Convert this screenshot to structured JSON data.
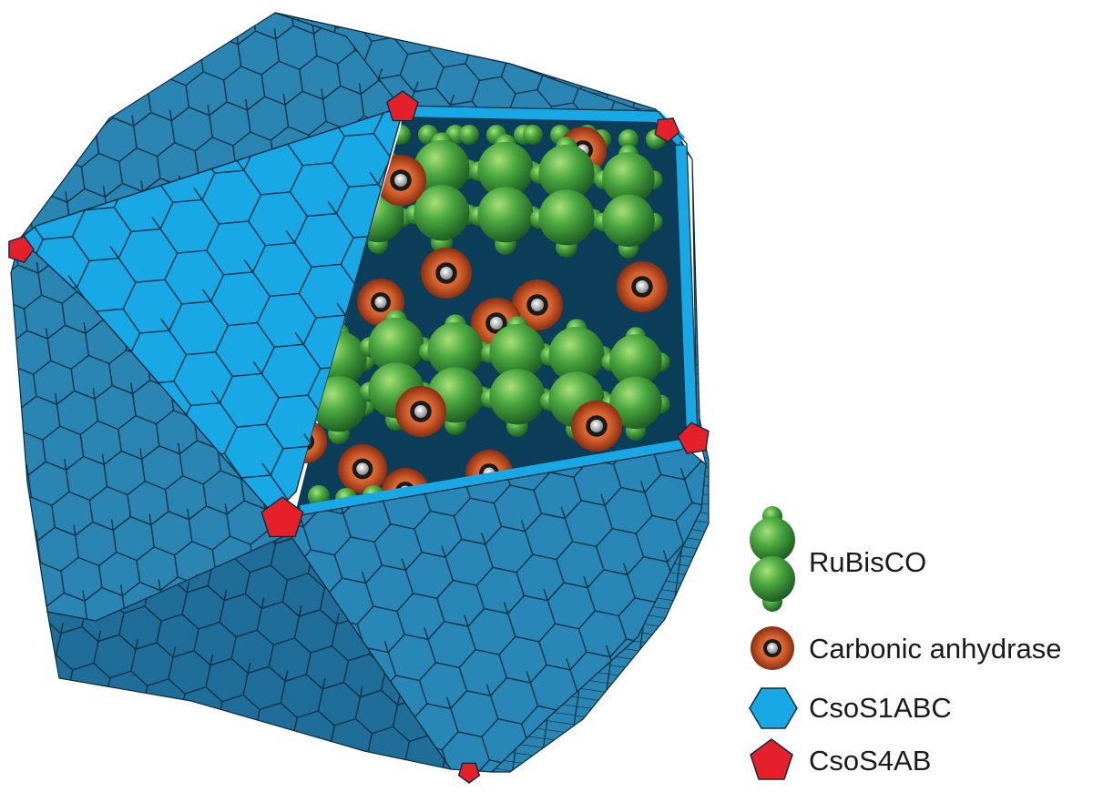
{
  "legend": {
    "items": [
      {
        "key": "rubisco",
        "label": "RuBisCO",
        "icon": "rubisco-icon",
        "color": "#3f9a3a"
      },
      {
        "key": "carbonic",
        "label": "Carbonic anhydrase",
        "icon": "carbonic-anhydrase-icon",
        "color": "#c8552a"
      },
      {
        "key": "csos1",
        "label": "CsoS1ABC",
        "icon": "hexagon-icon",
        "color": "#19a8e6"
      },
      {
        "key": "csos4",
        "label": "CsoS4AB",
        "icon": "pentagon-icon",
        "color": "#e5202a"
      }
    ]
  },
  "colors": {
    "shell_dark": "#2580ad",
    "shell_light": "#19a8e6",
    "shell_shadow": "#1f6f98",
    "interior": "#0c3e5a",
    "pentamer": "#e5202a",
    "rubisco": "#3f9a3a",
    "carbonic": "#c8552a"
  }
}
